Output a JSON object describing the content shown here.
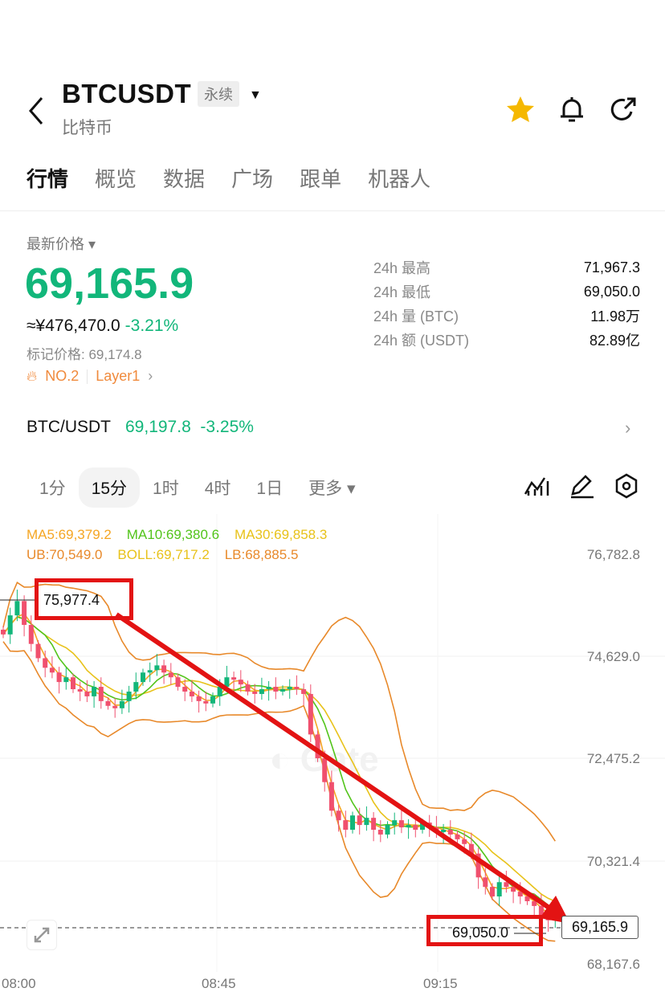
{
  "header": {
    "title": "BTCUSDT",
    "tag": "永续",
    "subtitle": "比特币",
    "icons": [
      "back-icon",
      "star-icon",
      "bell-icon",
      "share-icon"
    ],
    "star_color": "#f5b800"
  },
  "tabs": [
    {
      "label": "行情",
      "active": true
    },
    {
      "label": "概览"
    },
    {
      "label": "数据"
    },
    {
      "label": "广场"
    },
    {
      "label": "跟单"
    },
    {
      "label": "机器人"
    }
  ],
  "ticker": {
    "label": "最新价格",
    "price": "69,165.9",
    "cny": "≈¥476,470.0",
    "change": "-3.21%",
    "mark_price": "标记价格: 69,174.8",
    "rank": "NO.2",
    "sector": "Layer1",
    "up_color": "#12b67a"
  },
  "stats": [
    {
      "k": "24h  最高",
      "v": "71,967.3"
    },
    {
      "k": "24h  最低",
      "v": "69,050.0"
    },
    {
      "k": "24h  量 (BTC)",
      "v": "11.98万"
    },
    {
      "k": "24h  额 (USDT)",
      "v": "82.89亿"
    }
  ],
  "spot": {
    "pair": "BTC/USDT",
    "price": "69,197.8",
    "change": "-3.25%"
  },
  "timeframes": [
    {
      "label": "1分"
    },
    {
      "label": "15分",
      "active": true
    },
    {
      "label": "1时"
    },
    {
      "label": "4时"
    },
    {
      "label": "1日"
    },
    {
      "label": "更多 ▾"
    }
  ],
  "chart_data": {
    "type": "candlestick",
    "indicators": {
      "ma5": "MA5:69,379.2",
      "ma10": "MA10:69,380.6",
      "ma30": "MA30:69,858.3",
      "ub": "UB:70,549.0",
      "boll": "BOLL:69,717.2",
      "lb": "LB:68,885.5"
    },
    "y_ticks": [
      "76,782.8",
      "74,629.0",
      "72,475.2",
      "70,321.4",
      "68,167.6"
    ],
    "ylim": [
      68167.6,
      76782.8
    ],
    "x_ticks": [
      "08:00",
      "08:45",
      "09:15"
    ],
    "high_label": "75,977.4",
    "low_label": "69,050.0",
    "last_price": "69,165.9",
    "closes": [
      75100,
      75500,
      75800,
      75300,
      74900,
      74600,
      74400,
      74300,
      74100,
      74200,
      73950,
      73900,
      73800,
      74000,
      73700,
      73600,
      73550,
      73700,
      73900,
      74100,
      74300,
      74350,
      74450,
      74300,
      74200,
      74000,
      73900,
      73800,
      73700,
      73650,
      73800,
      74000,
      74200,
      74150,
      74050,
      73900,
      73850,
      73950,
      74000,
      73900,
      73950,
      74000,
      73950,
      73850,
      73000,
      72500,
      72000,
      71400,
      71200,
      71000,
      71300,
      71100,
      71250,
      71000,
      70900,
      71100,
      71200,
      71050,
      71100,
      71000,
      71150,
      71050,
      70950,
      71000,
      70900,
      70800,
      70700,
      70500,
      70000,
      69800,
      69600,
      69900,
      69800,
      69700,
      69600,
      69500,
      69400,
      69200,
      69100,
      69165.9
    ],
    "colors": {
      "up": "#12b67a",
      "down": "#f0506e",
      "ma5": "#f5a623",
      "ma10": "#52c41a",
      "ma30": "#e8c21a",
      "boll_band": "#e8892a",
      "annotation": "#e31313"
    }
  }
}
